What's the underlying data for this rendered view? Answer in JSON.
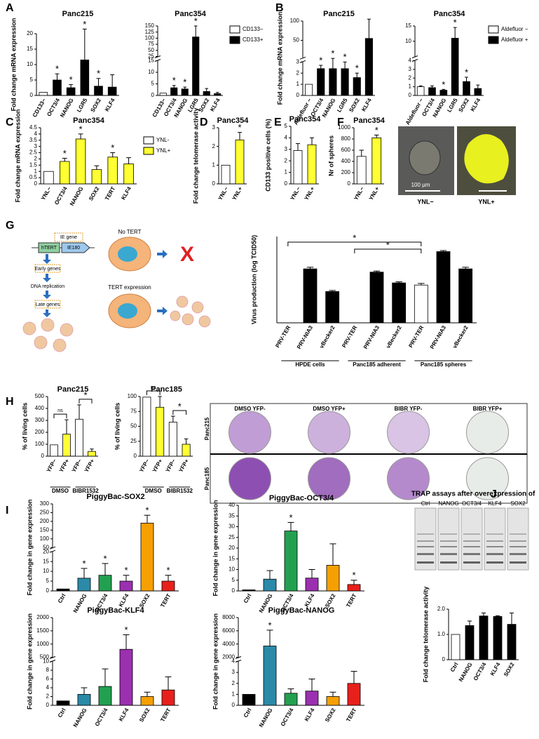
{
  "panel_labels": [
    "A",
    "B",
    "C",
    "D",
    "E",
    "F",
    "G",
    "H",
    "I",
    "J"
  ],
  "chart_data": [
    {
      "type": "bar",
      "title": "Panc215",
      "ylabel": "Fold change mRNA expression",
      "categories": [
        "CD133−",
        "OCT3/4",
        "NANOG",
        "LGR5",
        "SOX2",
        "KLF4"
      ],
      "values": [
        1,
        5,
        2.5,
        11.5,
        3,
        2.7
      ],
      "errors": [
        0,
        2,
        1,
        10,
        2.5,
        4
      ],
      "colors": [
        "#ffffff",
        "#000000",
        "#000000",
        "#000000",
        "#000000",
        "#000000"
      ],
      "significance": [
        null,
        "*",
        "*",
        "*",
        "*",
        null
      ],
      "ylim": [
        0,
        20
      ],
      "yticks": [
        0,
        5,
        10,
        15,
        20
      ]
    },
    {
      "type": "bar",
      "title": "Panc354",
      "categories": [
        "CD133−",
        "OCT3/4",
        "NANOG",
        "LGR5",
        "SOX2",
        "KLF4"
      ],
      "values": [
        1,
        3.3,
        2.8,
        105,
        1.7,
        0.8
      ],
      "errors": [
        0,
        1,
        0.8,
        45,
        1.3,
        0.5
      ],
      "colors": [
        "#ffffff",
        "#000000",
        "#000000",
        "#000000",
        "#000000",
        "#000000"
      ],
      "significance": [
        null,
        "*",
        "*",
        "*",
        null,
        null
      ],
      "ylim": [
        0,
        150
      ],
      "ysegments": [
        [
          0,
          15
        ],
        [
          25,
          150
        ]
      ],
      "yticks": [
        0,
        5,
        10,
        15,
        25,
        50,
        75,
        100,
        125,
        150
      ],
      "legend": [
        {
          "name": "CD133−",
          "color": "#ffffff"
        },
        {
          "name": "CD133+",
          "color": "#000000"
        }
      ]
    },
    {
      "type": "bar",
      "title": "Panc215",
      "ylabel": "Fold change mRNA expression",
      "categories": [
        "Aldefluor −",
        "OCT3/4",
        "NANOG",
        "LGR5",
        "SOX2",
        "KLF4"
      ],
      "values": [
        1,
        2.4,
        2.4,
        2.4,
        1.6,
        55
      ],
      "errors": [
        0,
        0.3,
        1,
        0.6,
        0.4,
        50
      ],
      "colors": [
        "#ffffff",
        "#000000",
        "#000000",
        "#000000",
        "#000000",
        "#000000"
      ],
      "significance": [
        null,
        "*",
        "*",
        "*",
        "*",
        null
      ],
      "ylim": [
        0,
        100
      ],
      "ysegments": [
        [
          0,
          3
        ],
        [
          5,
          100
        ]
      ],
      "yticks": [
        0,
        1,
        2,
        3,
        50,
        100
      ]
    },
    {
      "type": "bar",
      "title": "Panc354",
      "categories": [
        "Aldefluor −",
        "OCT3/4",
        "NANOG",
        "LGR5",
        "SOX2",
        "KLF4"
      ],
      "values": [
        1,
        0.9,
        0.6,
        11,
        1.6,
        0.8
      ],
      "errors": [
        0.1,
        0.2,
        0.1,
        3.5,
        0.5,
        0.4
      ],
      "colors": [
        "#ffffff",
        "#000000",
        "#000000",
        "#000000",
        "#000000",
        "#000000"
      ],
      "significance": [
        null,
        null,
        "*",
        "*",
        "*",
        null
      ],
      "ylim": [
        0,
        15
      ],
      "ysegments": [
        [
          0,
          4
        ],
        [
          5,
          15
        ]
      ],
      "yticks": [
        0,
        1,
        2,
        3,
        4,
        10,
        15
      ],
      "legend": [
        {
          "name": "Aldefluor −",
          "color": "#ffffff"
        },
        {
          "name": "Aldefluor +",
          "color": "#000000"
        }
      ]
    },
    {
      "type": "bar",
      "title": "Panc354",
      "ylabel": "Fold change mRNA expression",
      "categories": [
        "YNL−",
        "OCT3/4",
        "NANOG",
        "SOX2",
        "TERT",
        "KLF4"
      ],
      "values": [
        1,
        1.8,
        3.6,
        1.15,
        2.15,
        1.6
      ],
      "errors": [
        0,
        0.25,
        0.4,
        0.3,
        0.35,
        0.5
      ],
      "colors": [
        "#ffffff",
        "#ffff33",
        "#ffff33",
        "#ffff33",
        "#ffff33",
        "#ffff33"
      ],
      "significance": [
        null,
        "*",
        "*",
        null,
        "*",
        null
      ],
      "ylim": [
        0,
        4.5
      ],
      "yticks": [
        0,
        0.5,
        1,
        1.5,
        2,
        2.5,
        3,
        3.5,
        4,
        4.5
      ],
      "legend": [
        {
          "name": "YNL-",
          "color": "#ffffff"
        },
        {
          "name": "YNL+",
          "color": "#ffff33"
        }
      ]
    },
    {
      "type": "bar",
      "title": "Panc354",
      "ylabel": "Fold change telomerase activity",
      "categories": [
        "YNL−",
        "YNL+"
      ],
      "values": [
        1,
        2.35
      ],
      "errors": [
        0,
        0.4
      ],
      "colors": [
        "#ffffff",
        "#ffff33"
      ],
      "significance": [
        null,
        "*"
      ],
      "ylim": [
        0,
        3
      ],
      "yticks": [
        0,
        1,
        2,
        3
      ]
    },
    {
      "type": "bar",
      "title": "Panc354",
      "ylabel": "CD133 positive cells (%)",
      "categories": [
        "YNL−",
        "YNL+"
      ],
      "values": [
        2.9,
        3.4
      ],
      "errors": [
        0.6,
        0.6
      ],
      "colors": [
        "#ffffff",
        "#ffff33"
      ],
      "significance": [
        null,
        null
      ],
      "ylim": [
        0,
        5
      ],
      "yticks": [
        0,
        1,
        2,
        3,
        4,
        5
      ]
    },
    {
      "type": "bar",
      "title": "Panc354",
      "ylabel": "Nr of spheres",
      "categories": [
        "YNL−",
        "YNL+"
      ],
      "values": [
        490,
        820
      ],
      "errors": [
        110,
        50
      ],
      "colors": [
        "#ffffff",
        "#ffff33"
      ],
      "significance": [
        null,
        "*"
      ],
      "ylim": [
        0,
        1000
      ],
      "yticks": [
        0,
        200,
        400,
        600,
        800,
        1000
      ]
    },
    {
      "type": "bar",
      "ylabel": "Virus production (log TCID50)",
      "categories": [
        "PRV-TER",
        "PRV-NIA3",
        "vBecker2",
        "PRV-TER",
        "PRV-NIA3",
        "vBecker2",
        "PRV-TER",
        "PRV-NIA3",
        "vBecker2"
      ],
      "values": [
        0,
        5,
        2.9,
        0,
        4.7,
        3.7,
        3.5,
        6.6,
        5
      ],
      "errors": [
        0,
        0.15,
        0.1,
        0,
        0.1,
        0.1,
        0.15,
        0.1,
        0.15
      ],
      "colors": [
        "#ffffff",
        "#000000",
        "#000000",
        "#ffffff",
        "#000000",
        "#000000",
        "#ffffff",
        "#000000",
        "#000000"
      ],
      "ylim": [
        0,
        8
      ],
      "yticks": [],
      "groups": [
        {
          "label": "HPDE cells",
          "span": [
            0,
            2
          ]
        },
        {
          "label": "Panc185 adherent",
          "span": [
            3,
            5
          ]
        },
        {
          "label": "Panc185 spheres",
          "span": [
            6,
            8
          ]
        }
      ],
      "brackets": [
        {
          "text": "*",
          "between": [
            0,
            6
          ]
        },
        {
          "text": "*",
          "between": [
            3,
            6
          ]
        }
      ]
    },
    {
      "type": "bar",
      "title": "Panc215",
      "ylabel": "% of living cells",
      "categories": [
        "YFP−",
        "YFP+",
        "YFP−",
        "YFP+"
      ],
      "values": [
        95,
        185,
        310,
        40
      ],
      "errors": [
        0,
        120,
        120,
        20
      ],
      "colors": [
        "#ffffff",
        "#ffff33",
        "#ffffff",
        "#ffff33"
      ],
      "ylim": [
        0,
        500
      ],
      "yticks": [
        0,
        100,
        200,
        300,
        400,
        500
      ],
      "groups": [
        {
          "label": "DMSO",
          "span": [
            0,
            1
          ]
        },
        {
          "label": "BIBR1532",
          "span": [
            2,
            3
          ]
        }
      ],
      "brackets": [
        {
          "text": "ns",
          "between": [
            0,
            1
          ]
        },
        {
          "text": "*",
          "between": [
            2,
            3
          ]
        }
      ]
    },
    {
      "type": "bar",
      "title": "Panc185",
      "ylabel": "% of living cells",
      "categories": [
        "YFP−",
        "YFP+",
        "YFP−",
        "YFP+"
      ],
      "values": [
        99,
        82,
        57,
        20
      ],
      "errors": [
        0,
        18,
        10,
        9
      ],
      "colors": [
        "#ffffff",
        "#ffff33",
        "#ffffff",
        "#ffff33"
      ],
      "ylim": [
        0,
        100
      ],
      "yticks": [
        0,
        25,
        50,
        75,
        100
      ],
      "groups": [
        {
          "label": "DMSO",
          "span": [
            0,
            1
          ]
        },
        {
          "label": "BIBR1532",
          "span": [
            2,
            3
          ]
        }
      ],
      "brackets": [
        {
          "text": "ns",
          "between": [
            0,
            1
          ]
        },
        {
          "text": "*",
          "between": [
            2,
            3
          ]
        }
      ]
    },
    {
      "type": "bar",
      "title": "PiggyBac-SOX2",
      "ylabel": "Fold change in gene expression",
      "categories": [
        "Ctrl",
        "NANOG",
        "OCT3/4",
        "KLF4",
        "SOX2",
        "TERT"
      ],
      "values": [
        1,
        6.5,
        8,
        5,
        190,
        5
      ],
      "errors": [
        0,
        5,
        6,
        3,
        45,
        3
      ],
      "colors": [
        "#000000",
        "#2a8aa8",
        "#22a050",
        "#9b30b0",
        "#f5a000",
        "#e8201c"
      ],
      "significance": [
        null,
        "*",
        "*",
        "*",
        "*",
        "*"
      ],
      "ylim": [
        0,
        300
      ],
      "ysegments": [
        [
          0,
          20
        ],
        [
          50,
          300
        ]
      ],
      "yticks": [
        0,
        5,
        10,
        15,
        20,
        50,
        100,
        150,
        200,
        250,
        300
      ]
    },
    {
      "type": "bar",
      "title": "PiggyBac-OCT3/4",
      "ylabel": "Fold change in gene expression",
      "categories": [
        "Ctrl",
        "NANOG",
        "OCT3/4",
        "KLF4",
        "SOX2",
        "TERT"
      ],
      "values": [
        0.5,
        5.5,
        28,
        6,
        12,
        3
      ],
      "errors": [
        0,
        4,
        4,
        4,
        10,
        2
      ],
      "colors": [
        "#000000",
        "#2a8aa8",
        "#22a050",
        "#9b30b0",
        "#f5a000",
        "#e8201c"
      ],
      "significance": [
        null,
        null,
        "*",
        null,
        null,
        "*"
      ],
      "ylim": [
        0,
        40
      ],
      "yticks": [
        0,
        5,
        10,
        15,
        20,
        25,
        30,
        35,
        40
      ]
    },
    {
      "type": "bar",
      "title": "PiggyBac-KLF4",
      "ylabel": "Fold change in gene expression",
      "categories": [
        "Ctrl",
        "NANOG",
        "OCT3/4",
        "KLF4",
        "SOX2",
        "TERT"
      ],
      "values": [
        1,
        2.5,
        4.3,
        800,
        2,
        3.5
      ],
      "errors": [
        0,
        1.5,
        4,
        550,
        1,
        3
      ],
      "colors": [
        "#000000",
        "#2a8aa8",
        "#22a050",
        "#9b30b0",
        "#f5a000",
        "#e8201c"
      ],
      "significance": [
        null,
        null,
        null,
        "*",
        null,
        null
      ],
      "ylim": [
        0,
        2000
      ],
      "ysegments": [
        [
          0,
          10
        ],
        [
          500,
          2000
        ]
      ],
      "yticks": [
        0,
        2,
        4,
        6,
        8,
        10,
        500,
        1000,
        1500,
        2000
      ]
    },
    {
      "type": "bar",
      "title": "PiggyBac-NANOG",
      "ylabel": "Fold change in gene expression",
      "categories": [
        "Ctrl",
        "NANOG",
        "OCT3/4",
        "KLF4",
        "SOX2",
        "TERT"
      ],
      "values": [
        1,
        3700,
        1.1,
        1.3,
        0.8,
        2
      ],
      "errors": [
        0,
        2400,
        0.4,
        1.1,
        0.4,
        1.1
      ],
      "colors": [
        "#000000",
        "#2a8aa8",
        "#22a050",
        "#9b30b0",
        "#f5a000",
        "#e8201c"
      ],
      "significance": [
        null,
        "*",
        null,
        null,
        null,
        null
      ],
      "ylim": [
        0,
        8000
      ],
      "ysegments": [
        [
          0,
          4
        ],
        [
          2000,
          8000
        ]
      ],
      "yticks": [
        0,
        1,
        2,
        3,
        4,
        2000,
        4000,
        6000,
        8000
      ]
    },
    {
      "type": "bar",
      "ylabel": "Fold change telomerase activity",
      "categories": [
        "Ctrl",
        "NANOG",
        "OCT3/4",
        "KLF4",
        "SOX2"
      ],
      "values": [
        1,
        1.35,
        1.73,
        1.71,
        1.4
      ],
      "errors": [
        0,
        0.18,
        0.12,
        0.03,
        0.45
      ],
      "colors": [
        "#ffffff",
        "#000000",
        "#000000",
        "#000000",
        "#000000"
      ],
      "ylim": [
        0,
        2
      ],
      "yticks": [
        0,
        {
          "value": 1,
          "label": "1.0"
        },
        {
          "value": 2,
          "label": "2.0"
        }
      ]
    }
  ],
  "figure_text": {
    "f_photos": {
      "scale": "100 µm",
      "left": "YNL−",
      "right": "YNL+"
    },
    "g_diagram": {
      "ie_gene": "IE gene",
      "htert": "hTERT",
      "ie180": "IE180",
      "early": "Early genes",
      "dna": "DNA replication",
      "late": "Late genes",
      "no_tert": "No TERT",
      "tert": "TERT expression",
      "x": "X"
    },
    "h_plates": {
      "columns": [
        "DMSO YFP-",
        "DMSO YFP+",
        "BIBR YFP-",
        "BIBR YFP+"
      ],
      "rows": [
        "Panc215",
        "Panc185"
      ]
    },
    "j_gel": {
      "title": "TRAP assays after overexpression of",
      "lanes": [
        "Ctrl",
        "NANOG",
        "OCT3/4",
        "KLF4",
        "SOX2"
      ]
    }
  }
}
